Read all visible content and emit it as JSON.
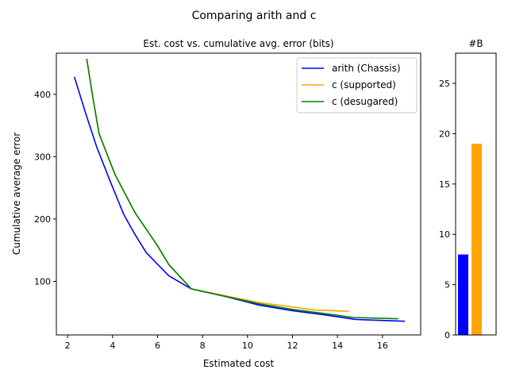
{
  "figure": {
    "suptitle": "Comparing arith and c"
  },
  "chart_data": [
    {
      "type": "line",
      "title": "Est. cost vs. cumulative avg. error (bits)",
      "xlabel": "Estimated cost",
      "ylabel": "Cumulative average error",
      "xlim": [
        1.5,
        17.7
      ],
      "ylim": [
        14,
        466
      ],
      "xticks": [
        "2",
        "4",
        "6",
        "8",
        "10",
        "12",
        "14",
        "16"
      ],
      "yticks": [
        "100",
        "200",
        "300",
        "400"
      ],
      "legend_position": "top-right",
      "series": [
        {
          "name": "arith (Chassis)",
          "color": "#0000ff",
          "points": [
            [
              2.3,
              428
            ],
            [
              2.8,
              370
            ],
            [
              3.3,
              315
            ],
            [
              3.9,
              260
            ],
            [
              4.5,
              207
            ],
            [
              5.0,
              175
            ],
            [
              5.5,
              146
            ],
            [
              6.5,
              109
            ],
            [
              7.5,
              88
            ],
            [
              9.0,
              76
            ],
            [
              10.5,
              62
            ],
            [
              12.0,
              53
            ],
            [
              13.5,
              46
            ],
            [
              14.8,
              39
            ],
            [
              15.5,
              38
            ],
            [
              17.0,
              36
            ]
          ]
        },
        {
          "name": "c (supported)",
          "color": "#ffa500",
          "points": [
            [
              2.85,
              457
            ],
            [
              3.1,
              400
            ],
            [
              3.4,
              337
            ],
            [
              4.1,
              272
            ],
            [
              5.0,
              210
            ],
            [
              6.0,
              157
            ],
            [
              6.5,
              127
            ],
            [
              7.5,
              88
            ],
            [
              9.0,
              77
            ],
            [
              10.5,
              66
            ],
            [
              12.0,
              59
            ],
            [
              13.0,
              54
            ],
            [
              14.5,
              52
            ]
          ]
        },
        {
          "name": "c (desugared)",
          "color": "#008000",
          "points": [
            [
              2.85,
              457
            ],
            [
              3.1,
              400
            ],
            [
              3.4,
              337
            ],
            [
              4.1,
              272
            ],
            [
              5.0,
              210
            ],
            [
              6.0,
              157
            ],
            [
              6.5,
              127
            ],
            [
              7.5,
              88
            ],
            [
              9.0,
              76
            ],
            [
              10.5,
              64
            ],
            [
              12.0,
              55
            ],
            [
              13.5,
              48
            ],
            [
              14.7,
              42
            ],
            [
              16.7,
              40
            ]
          ]
        }
      ]
    },
    {
      "type": "bar",
      "title": "#B",
      "ylim": [
        0,
        28
      ],
      "yticks": [
        "0",
        "5",
        "10",
        "15",
        "20",
        "25"
      ],
      "bars": [
        {
          "value": 8,
          "color": "#0000ff"
        },
        {
          "value": 19,
          "color": "#ffa500"
        }
      ]
    }
  ]
}
